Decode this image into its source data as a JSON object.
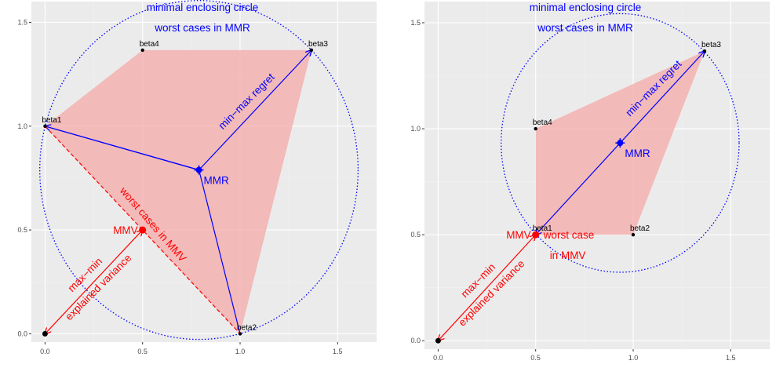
{
  "colors": {
    "panel_bg": "#ebebeb",
    "grid_major": "#ffffff",
    "grid_minor": "#f2f2f2",
    "hull_fill": "#f4a9a8",
    "mmr": "#0000ff",
    "mmv": "#ff0000",
    "point": "#000000",
    "tick_text": "#4d4d4d"
  },
  "chart_data": [
    {
      "type": "scatter",
      "x_ticks": [
        0.0,
        0.5,
        1.0,
        1.5
      ],
      "y_ticks": [
        0.0,
        0.5,
        1.0,
        1.5
      ],
      "x_tick_labels": [
        "0.0",
        "0.5",
        "1.0",
        "1.5"
      ],
      "y_tick_labels": [
        "0.0",
        "0.5",
        "1.0",
        "1.5"
      ],
      "xlim": [
        -0.07,
        1.7
      ],
      "ylim": [
        -0.04,
        1.6
      ],
      "grid": true,
      "points": [
        {
          "name": "beta1",
          "x": 0.0,
          "y": 1.0
        },
        {
          "name": "beta2",
          "x": 1.0,
          "y": 0.0
        },
        {
          "name": "beta3",
          "x": 1.366,
          "y": 1.366
        },
        {
          "name": "beta4",
          "x": 0.5,
          "y": 1.366
        }
      ],
      "origin": {
        "x": 0.0,
        "y": 0.0
      },
      "mmr": {
        "x": 0.789,
        "y": 0.789,
        "label": "MMR"
      },
      "mmv": {
        "x": 0.5,
        "y": 0.5,
        "label": "MMV"
      },
      "circle_radius": 0.816,
      "annotations": {
        "circle_title_1": "minimal enclosing circle",
        "circle_title_2": "worst cases in MMR",
        "mmr_arrow": "min−max regret",
        "mmv_dashed": "worst cases in MMV",
        "mmv_arrow_1": "max−min",
        "mmv_arrow_2": "explained variance"
      }
    },
    {
      "type": "scatter",
      "x_ticks": [
        0.0,
        0.5,
        1.0,
        1.5
      ],
      "y_ticks": [
        0.0,
        0.5,
        1.0,
        1.5
      ],
      "x_tick_labels": [
        "0.0",
        "0.5",
        "1.0",
        "1.5"
      ],
      "y_tick_labels": [
        "0.0",
        "0.5",
        "1.0",
        "1.5"
      ],
      "xlim": [
        -0.07,
        1.7
      ],
      "ylim": [
        -0.04,
        1.6
      ],
      "grid": true,
      "points": [
        {
          "name": "beta1",
          "x": 0.5,
          "y": 0.5
        },
        {
          "name": "beta2",
          "x": 1.0,
          "y": 0.5
        },
        {
          "name": "beta3",
          "x": 1.366,
          "y": 1.366
        },
        {
          "name": "beta4",
          "x": 0.5,
          "y": 1.0
        }
      ],
      "origin": {
        "x": 0.0,
        "y": 0.0
      },
      "mmr": {
        "x": 0.933,
        "y": 0.933,
        "label": "MMR"
      },
      "mmv": {
        "x": 0.5,
        "y": 0.5,
        "label": "MMV"
      },
      "circle_radius": 0.61,
      "annotations": {
        "circle_title_1": "minimal enclosing circle",
        "circle_title_2": "worst cases in MMR",
        "mmr_arrow": "min−max regret",
        "mmv_worst_1": "worst case",
        "mmv_worst_2": "in MMV",
        "mmv_arrow_1": "max−min",
        "mmv_arrow_2": "explained variance"
      }
    }
  ]
}
